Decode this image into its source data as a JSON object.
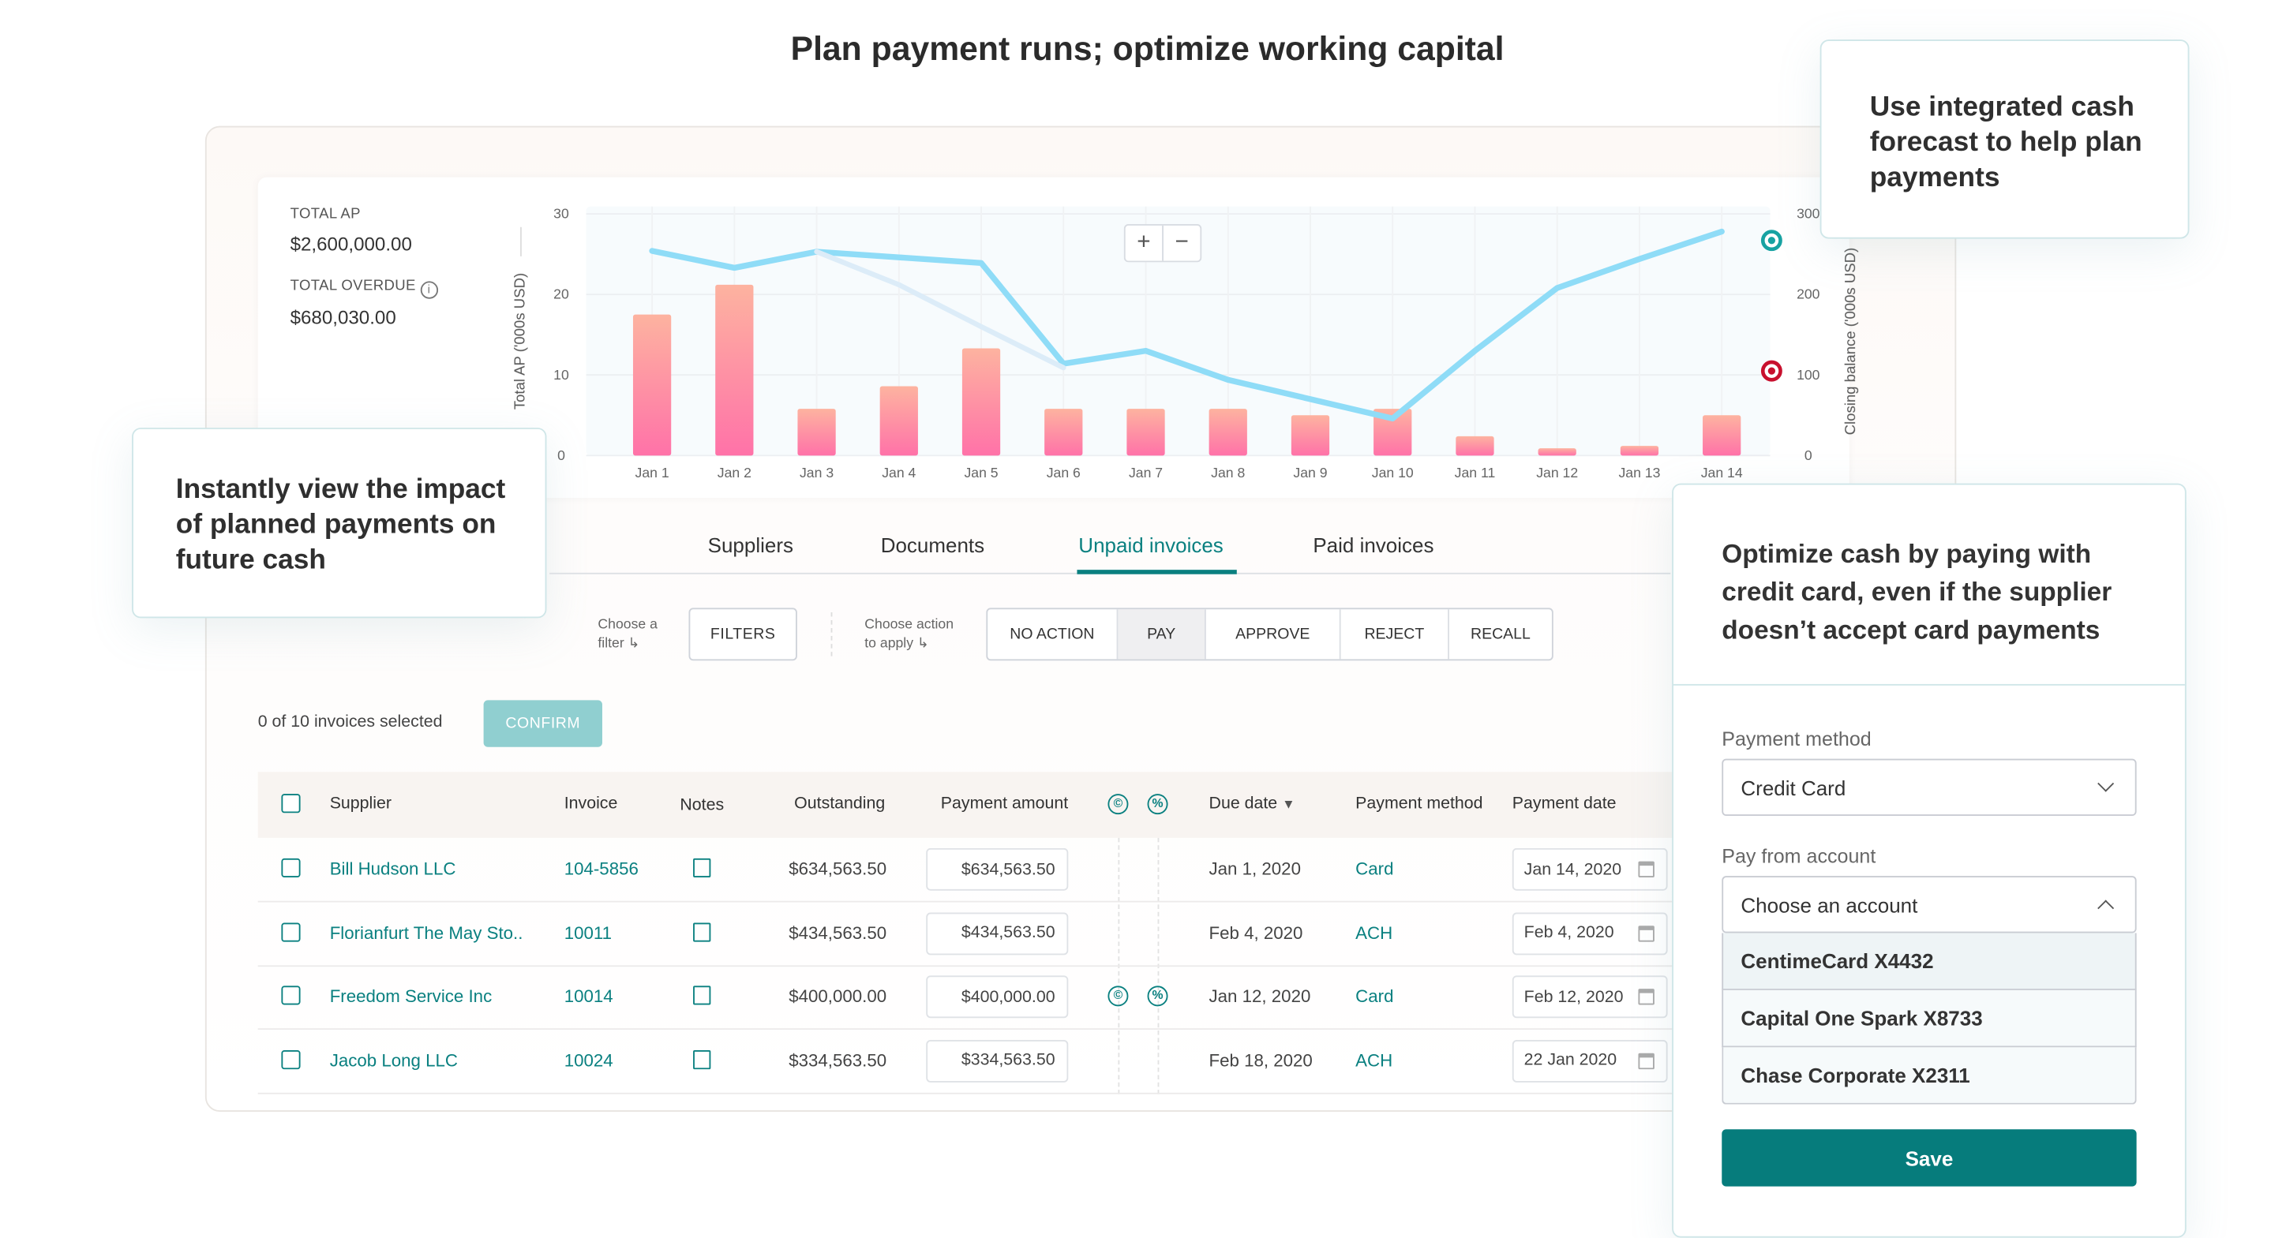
{
  "page_title": "Plan payment runs; optimize working capital",
  "callouts": {
    "forecast": "Use integrated cash forecast to help plan payments",
    "impact": "Instantly view the impact of planned payments on future cash",
    "credit": "Optimize cash by paying with credit card, even if the supplier doesn’t accept card payments"
  },
  "kpis": {
    "total_ap_label": "TOTAL AP",
    "total_ap_value": "$2,600,000.00",
    "total_overdue_label": "TOTAL OVERDUE",
    "total_overdue_value": "$680,030.00",
    "info_icon": "i"
  },
  "chart_controls": {
    "zoom_in": "+",
    "zoom_out": "−"
  },
  "chart_data": {
    "type": "bar+line",
    "categories": [
      "Jan 1",
      "Jan 2",
      "Jan 3",
      "Jan 4",
      "Jan 5",
      "Jan 6",
      "Jan 7",
      "Jan 8",
      "Jan 9",
      "Jan 10",
      "Jan 11",
      "Jan 12",
      "Jan 13",
      "Jan 14"
    ],
    "ylabel": "Total AP ('000s USD)",
    "y2label": "Closing balance ('000s USD)",
    "ylim": [
      0,
      30
    ],
    "y2lim": [
      0,
      300
    ],
    "yticks": [
      "0",
      "10",
      "20",
      "30"
    ],
    "y2ticks": [
      "0",
      "100",
      "200",
      "300"
    ],
    "grid": true,
    "series": [
      {
        "type": "bar",
        "axis": "left",
        "values": [
          17.5,
          21.2,
          5.8,
          8.6,
          13.3,
          5.8,
          5.8,
          5.8,
          5.0,
          5.8,
          2.4,
          0.9,
          1.2,
          5.0
        ],
        "color_top": "#fdb3a0",
        "color_bottom": "#ff72a8"
      },
      {
        "type": "line",
        "axis": "right",
        "values": [
          254,
          233,
          253,
          246,
          239,
          114,
          130,
          94,
          70,
          46,
          130,
          208,
          244,
          278
        ],
        "color": "#8fdcf7"
      },
      {
        "type": "line",
        "axis": "right",
        "faded": true,
        "values": [
          null,
          null,
          253,
          212,
          160,
          109,
          null,
          null,
          null,
          null,
          null,
          null,
          null,
          null
        ],
        "color": "#dcecf8"
      }
    ],
    "markers": [
      {
        "axis": "right",
        "value": 267,
        "color": "#17a2a2"
      },
      {
        "axis": "right",
        "value": 105,
        "color": "#c8102e"
      }
    ]
  },
  "tabs": [
    {
      "label": "Suppliers",
      "active": false
    },
    {
      "label": "Documents",
      "active": false
    },
    {
      "label": "Unpaid invoices",
      "active": true
    },
    {
      "label": "Paid invoices",
      "active": false
    }
  ],
  "filters": {
    "hint_line1": "Choose a",
    "hint_line2": "filter",
    "button": "FILTERS",
    "action_hint_line1": "Choose action",
    "action_hint_line2": "to apply"
  },
  "actions": [
    {
      "label": "NO ACTION",
      "active": false
    },
    {
      "label": "PAY",
      "active": true
    },
    {
      "label": "APPROVE",
      "active": false
    },
    {
      "label": "REJECT",
      "active": false
    },
    {
      "label": "RECALL",
      "active": false
    }
  ],
  "selection": {
    "text": "0 of 10 invoices selected",
    "confirm": "CONFIRM"
  },
  "table": {
    "headers": {
      "supplier": "Supplier",
      "invoice": "Invoice",
      "notes": "Notes",
      "outstanding": "Outstanding",
      "payment_amount": "Payment amount",
      "credit_icon": "©",
      "discount_icon": "%",
      "due_date": "Due date",
      "payment_method": "Payment method",
      "payment_date": "Payment date"
    },
    "rows": [
      {
        "supplier": "Bill Hudson LLC",
        "invoice": "104-5856",
        "outstanding": "$634,563.50",
        "payment_amount": "$634,563.50",
        "icons": false,
        "due_date": "Jan 1, 2020",
        "method": "Card",
        "payment_date": "Jan 14, 2020"
      },
      {
        "supplier": "Florianfurt The May Sto..",
        "invoice": "10011",
        "outstanding": "$434,563.50",
        "payment_amount": "$434,563.50",
        "icons": false,
        "due_date": "Feb 4, 2020",
        "method": "ACH",
        "payment_date": "Feb 4, 2020"
      },
      {
        "supplier": "Freedom Service Inc",
        "invoice": "10014",
        "outstanding": "$400,000.00",
        "payment_amount": "$400,000.00",
        "icons": true,
        "due_date": "Jan 12, 2020",
        "method": "Card",
        "payment_date": "Feb 12, 2020"
      },
      {
        "supplier": "Jacob Long LLC",
        "invoice": "10024",
        "outstanding": "$334,563.50",
        "payment_amount": "$334,563.50",
        "icons": false,
        "due_date": "Feb 18, 2020",
        "method": "ACH",
        "payment_date": "22 Jan 2020"
      }
    ]
  },
  "payment_panel": {
    "method_label": "Payment method",
    "method_value": "Credit Card",
    "account_label": "Pay from account",
    "account_placeholder": "Choose an account",
    "options": [
      "CentimeCard X4432",
      "Capital One Spark X8733",
      "Chase Corporate X2311"
    ],
    "save": "Save"
  },
  "colors": {
    "brand_teal": "#0a8080",
    "save_button": "#067c7c",
    "confirm_button": "#90cfd0",
    "active_tab": "#0a8080"
  }
}
